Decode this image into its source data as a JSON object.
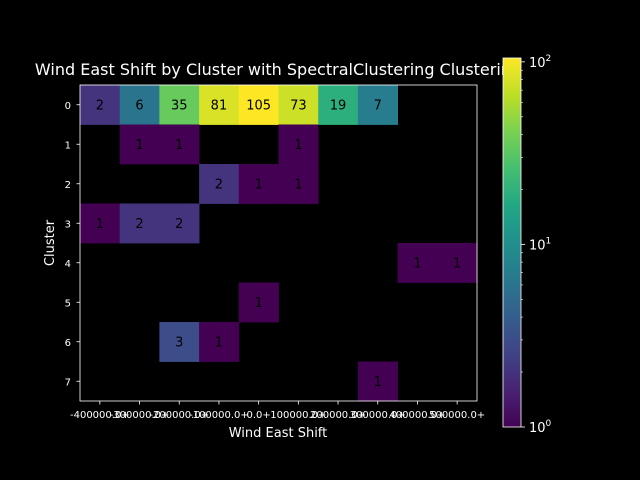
{
  "chart_data": {
    "type": "heatmap",
    "title": "Wind East Shift by Cluster with SpectralClustering Clustering",
    "xlabel": "Wind East Shift",
    "ylabel": "Cluster",
    "x_categories": [
      "-400000.0+",
      "-300000.0+",
      "-200000.0+",
      "-100000.0+",
      "0.0+",
      "100000.0+",
      "200000.0+",
      "300000.0+",
      "400000.0+",
      "500000.0+"
    ],
    "y_categories": [
      "0",
      "1",
      "2",
      "3",
      "4",
      "5",
      "6",
      "7"
    ],
    "values": [
      [
        2,
        6,
        35,
        81,
        105,
        73,
        19,
        7,
        null,
        null
      ],
      [
        null,
        1,
        1,
        null,
        null,
        1,
        null,
        null,
        null,
        null
      ],
      [
        null,
        null,
        null,
        2,
        1,
        1,
        null,
        null,
        null,
        null
      ],
      [
        1,
        2,
        2,
        null,
        null,
        null,
        null,
        null,
        null,
        null
      ],
      [
        null,
        null,
        null,
        null,
        null,
        null,
        null,
        null,
        1,
        1
      ],
      [
        null,
        null,
        null,
        null,
        1,
        null,
        null,
        null,
        null,
        null
      ],
      [
        null,
        null,
        3,
        1,
        null,
        null,
        null,
        null,
        null,
        null
      ],
      [
        null,
        null,
        null,
        null,
        null,
        null,
        null,
        1,
        null,
        null
      ]
    ],
    "colorbar": {
      "scale": "log",
      "range": [
        1,
        105
      ],
      "colormap": "viridis",
      "ticks": [
        {
          "value": 1,
          "label": "10",
          "exp": "0"
        },
        {
          "value": 10,
          "label": "10",
          "exp": "1"
        },
        {
          "value": 100,
          "label": "10",
          "exp": "2"
        }
      ]
    }
  }
}
